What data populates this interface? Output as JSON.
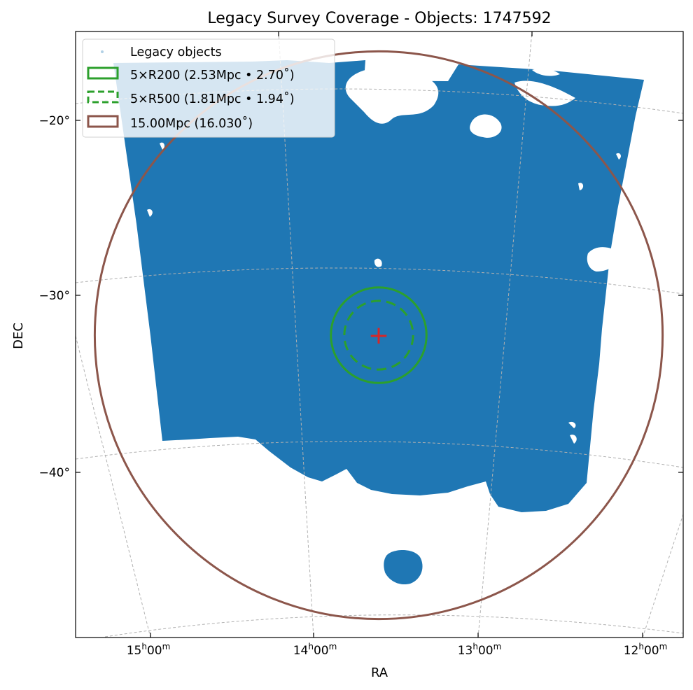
{
  "chart_data": {
    "type": "scatter",
    "title": "Legacy Survey Coverage - Objects: 1747592",
    "xlabel": "RA",
    "ylabel": "DEC",
    "x_ticks": [
      {
        "label": "15",
        "value_hours": 15
      },
      {
        "label": "14",
        "value_hours": 14
      },
      {
        "label": "13",
        "value_hours": 13
      },
      {
        "label": "12",
        "value_hours": 12
      }
    ],
    "x_tick_suffix": {
      "h": "h",
      "mm": "00",
      "m": "m"
    },
    "y_ticks": [
      {
        "label": "−20°",
        "value": -20
      },
      {
        "label": "−30°",
        "value": -30
      },
      {
        "label": "−40°",
        "value": -40
      }
    ],
    "center": {
      "ra_hours": 13.6,
      "dec": -32.2,
      "marker": "+",
      "color": "#d62728"
    },
    "legend_location": "top-left",
    "legend": [
      {
        "label": "Legacy objects",
        "style": "point",
        "color": "#1f77b4"
      },
      {
        "label": "5×R200 (2.53Mpc • 2.70˚)",
        "style": "solid",
        "color": "#2ca02c",
        "radius_deg": 2.7
      },
      {
        "label": "5×R500 (1.81Mpc • 1.94˚)",
        "style": "dashed",
        "color": "#2ca02c",
        "radius_deg": 1.94
      },
      {
        "label": "15.00Mpc (16.030˚)",
        "style": "solid",
        "color": "#8c564b",
        "radius_deg": 16.03
      }
    ],
    "objects_color": "#1f77b4",
    "grid": true,
    "grid_color": "#b0b0b0"
  }
}
